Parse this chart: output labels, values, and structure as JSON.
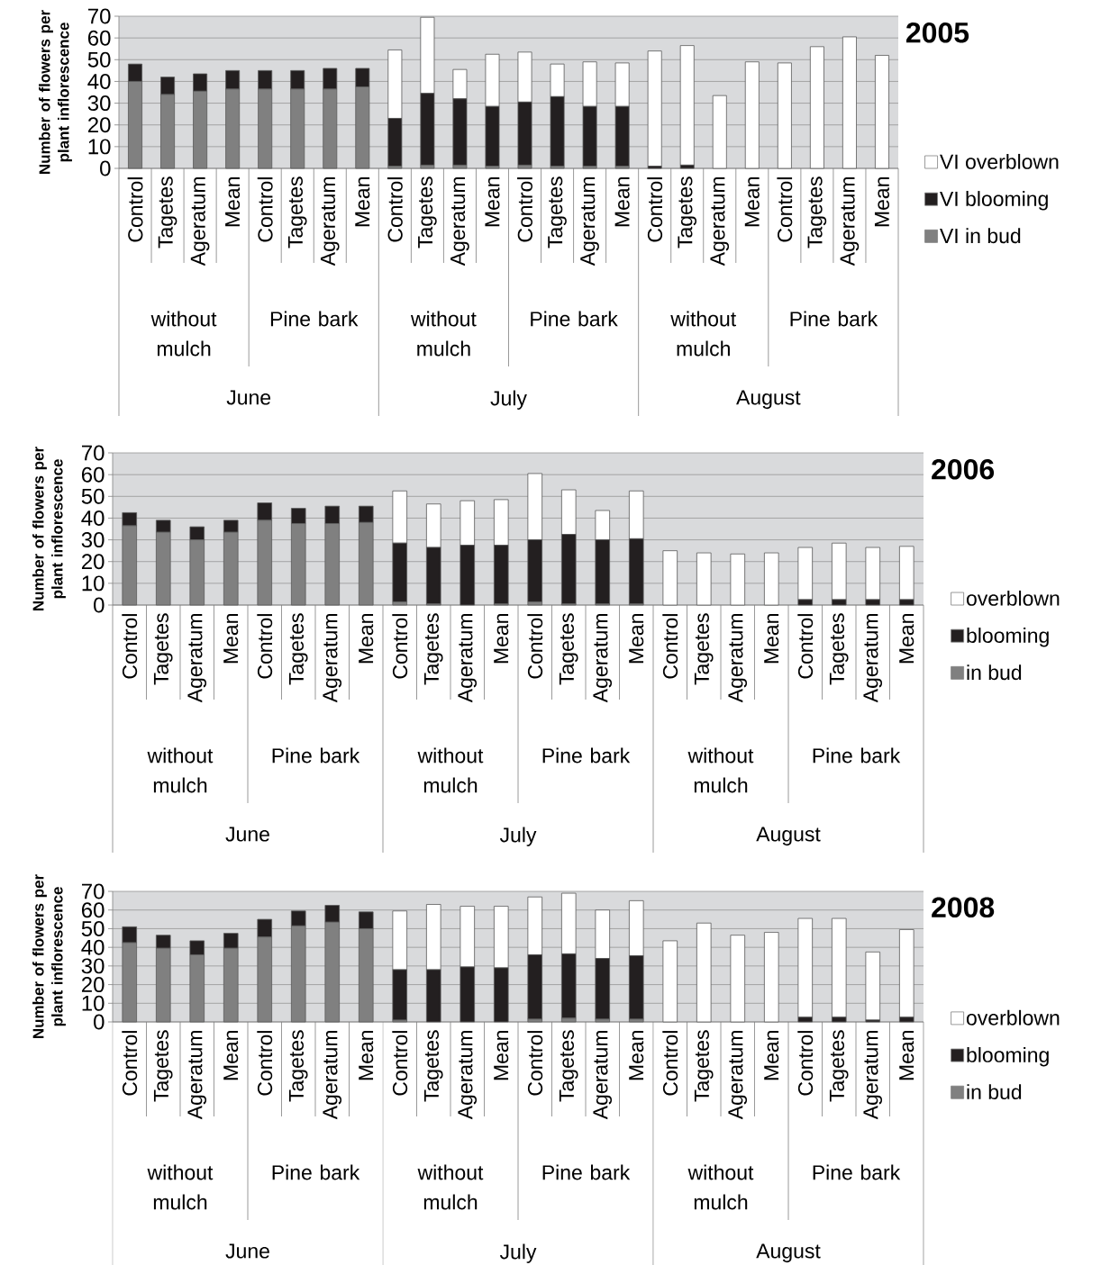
{
  "chart_data": [
    {
      "type": "bar",
      "stacked": true,
      "title": "2005",
      "ylabel": "Number of flowers per plant inflorescence",
      "categories": [
        "Control",
        "Tagetes",
        "Ageratum",
        "Mean",
        "Control",
        "Tagetes",
        "Ageratum",
        "Mean",
        "Control",
        "Tagetes",
        "Ageratum",
        "Mean",
        "Control",
        "Tagetes",
        "Ageratum",
        "Mean",
        "Control",
        "Tagetes",
        "Ageratum",
        "Mean",
        "Control",
        "Tagetes",
        "Ageratum",
        "Mean"
      ],
      "annotations": [
        "without mulch",
        "Pine bark",
        "without mulch",
        "Pine bark",
        "without mulch",
        "Pine bark",
        "June",
        "July",
        "August"
      ],
      "ylim": [
        0,
        70
      ],
      "yticks": [
        0,
        10,
        20,
        30,
        40,
        50,
        60,
        70
      ],
      "grid": "y",
      "legend": "right",
      "series": [
        {
          "name": "VI in bud",
          "color": "#808080",
          "values": [
            40,
            34,
            35.5,
            36.5,
            36.5,
            36.5,
            36.5,
            37.5,
            1,
            1.5,
            1.5,
            1,
            1.5,
            1,
            1,
            1,
            0,
            0,
            0,
            0,
            0,
            0,
            0,
            0
          ]
        },
        {
          "name": "VI blooming",
          "color": "#231f20",
          "values": [
            8,
            8,
            8,
            8.5,
            8.5,
            8.5,
            9.5,
            8.5,
            22,
            33,
            30.5,
            27.5,
            29,
            32,
            27.5,
            27.5,
            1,
            1.5,
            0,
            0,
            0,
            0,
            0,
            0
          ]
        },
        {
          "name": "VI overblown",
          "color": "#ffffff",
          "values": [
            0,
            0,
            0,
            0,
            0,
            0,
            0,
            0,
            31.5,
            35,
            13.5,
            24,
            23,
            15,
            20.5,
            20,
            53,
            55,
            33.5,
            49,
            48.5,
            56,
            60.5,
            52
          ]
        }
      ]
    },
    {
      "type": "bar",
      "stacked": true,
      "title": "2006",
      "ylabel": "Number of flowers per plant inflorescence",
      "categories": [
        "Control",
        "Tagetes",
        "Ageratum",
        "Mean",
        "Control",
        "Tagetes",
        "Ageratum",
        "Mean",
        "Control",
        "Tagetes",
        "Ageratum",
        "Mean",
        "Control",
        "Tagetes",
        "Ageratum",
        "Mean",
        "Control",
        "Tagetes",
        "Ageratum",
        "Mean",
        "Control",
        "Tagetes",
        "Ageratum",
        "Mean"
      ],
      "annotations": [
        "without mulch",
        "Pine bark",
        "without mulch",
        "Pine bark",
        "without mulch",
        "Pine bark",
        "June",
        "July",
        "August"
      ],
      "ylim": [
        0,
        70
      ],
      "yticks": [
        0,
        10,
        20,
        30,
        40,
        50,
        60,
        70
      ],
      "grid": "y",
      "legend": "right",
      "series": [
        {
          "name": "in bud",
          "color": "#808080",
          "values": [
            36.5,
            33.5,
            30,
            33.5,
            39,
            37.5,
            37.5,
            38,
            1.5,
            0.5,
            0,
            0.5,
            1.5,
            0.5,
            0.5,
            0.5,
            0,
            0,
            0,
            0,
            0,
            0,
            0,
            0
          ]
        },
        {
          "name": "blooming",
          "color": "#231f20",
          "values": [
            6,
            5.5,
            6,
            5.5,
            8,
            7,
            8,
            7.5,
            27,
            26,
            27.5,
            27,
            28.5,
            32,
            29.5,
            30,
            0,
            0,
            0,
            0,
            2.5,
            2.5,
            2.5,
            2.5
          ]
        },
        {
          "name": "overblown",
          "color": "#ffffff",
          "values": [
            0,
            0,
            0,
            0,
            0,
            0,
            0,
            0,
            24,
            20,
            20.5,
            21,
            30.5,
            20.5,
            13.5,
            22,
            25,
            24,
            23.5,
            24,
            24,
            26,
            24,
            24.5
          ]
        }
      ]
    },
    {
      "type": "bar",
      "stacked": true,
      "title": "2008",
      "ylabel": "Number of flowers per plant inflorescence",
      "categories": [
        "Control",
        "Tagetes",
        "Ageratum",
        "Mean",
        "Control",
        "Tagetes",
        "Ageratum",
        "Mean",
        "Control",
        "Tagetes",
        "Ageratum",
        "Mean",
        "Control",
        "Tagetes",
        "Ageratum",
        "Mean",
        "Control",
        "Tagetes",
        "Ageratum",
        "Mean",
        "Control",
        "Tagetes",
        "Ageratum",
        "Mean"
      ],
      "annotations": [
        "without mulch",
        "Pine bark",
        "without mulch",
        "Pine bark",
        "without mulch",
        "Pine bark",
        "June",
        "July",
        "August"
      ],
      "ylim": [
        0,
        70
      ],
      "yticks": [
        0,
        10,
        20,
        30,
        40,
        50,
        60,
        70
      ],
      "grid": "y",
      "legend": "right",
      "series": [
        {
          "name": "in bud",
          "color": "#808080",
          "values": [
            42.5,
            39.5,
            36,
            39.5,
            45.5,
            51.5,
            53.5,
            50,
            1,
            0,
            0,
            0,
            1.5,
            2,
            1.5,
            1.5,
            0,
            0,
            0,
            0,
            0,
            0,
            0,
            0
          ]
        },
        {
          "name": "blooming",
          "color": "#231f20",
          "values": [
            8.5,
            7,
            7.5,
            8,
            9.5,
            8,
            9,
            9,
            27,
            28,
            29.5,
            29,
            34.5,
            34.5,
            32.5,
            34,
            0,
            0,
            0,
            0,
            2.5,
            2.5,
            1,
            2.5
          ]
        },
        {
          "name": "overblown",
          "color": "#ffffff",
          "values": [
            0,
            0,
            0,
            0,
            0,
            0,
            0,
            0,
            31.5,
            35,
            32.5,
            33,
            31,
            32.5,
            26,
            29.5,
            43.5,
            53,
            46.5,
            48,
            53,
            53,
            36.5,
            47
          ]
        }
      ]
    }
  ]
}
